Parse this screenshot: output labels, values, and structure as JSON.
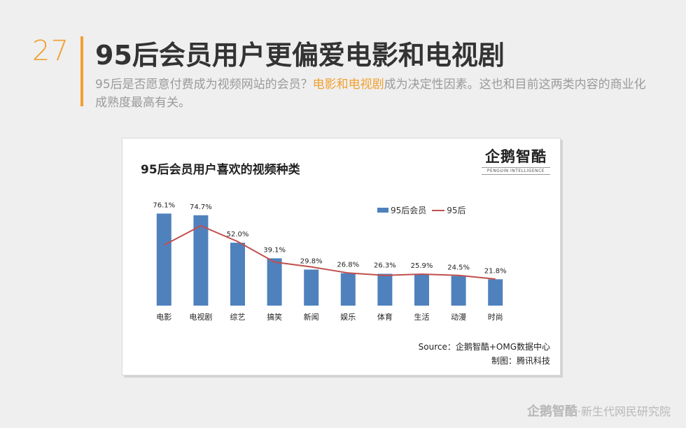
{
  "header": {
    "page_number": "27",
    "title": "95后会员用户更偏爱电影和电视剧",
    "subtitle_before": "95后是否愿意付费成为视频网站的会员？",
    "subtitle_highlight": "电影和电视剧",
    "subtitle_after": "成为决定性因素。这也和目前这两类内容的商业化成熟度最高有关。"
  },
  "colors": {
    "accent": "#f0a030",
    "bar": "#4f81bd",
    "line": "#c0504d"
  },
  "logo": {
    "name": "企鹅智酷",
    "tagline": "PENGUIN INTELLIGENCE"
  },
  "source": {
    "line1": "Source：企鹅智酷+OMG数据中心",
    "line2": "制图：腾讯科技"
  },
  "footer": {
    "logo": "企鹅智酷",
    "separator": "·",
    "text": "新生代网民研究院"
  },
  "chart_data": {
    "type": "bar",
    "title": "95后会员用户喜欢的视频种类",
    "categories": [
      "电影",
      "电视剧",
      "综艺",
      "搞笑",
      "新闻",
      "娱乐",
      "体育",
      "生活",
      "动漫",
      "时尚"
    ],
    "series": [
      {
        "name": "95后会员",
        "type": "bar",
        "values": [
          76.1,
          74.7,
          52.0,
          39.1,
          29.8,
          26.8,
          26.3,
          25.9,
          24.5,
          21.8
        ]
      },
      {
        "name": "95后",
        "type": "line",
        "values": [
          50,
          66,
          53,
          36,
          32,
          27,
          25,
          26,
          25,
          22
        ]
      }
    ],
    "data_labels": [
      "76.1%",
      "74.7%",
      "52.0%",
      "39.1%",
      "29.8%",
      "26.8%",
      "26.3%",
      "25.9%",
      "24.5%",
      "21.8%"
    ],
    "ylim": [
      0,
      85
    ],
    "legend_position": "top-right",
    "grid": false
  }
}
